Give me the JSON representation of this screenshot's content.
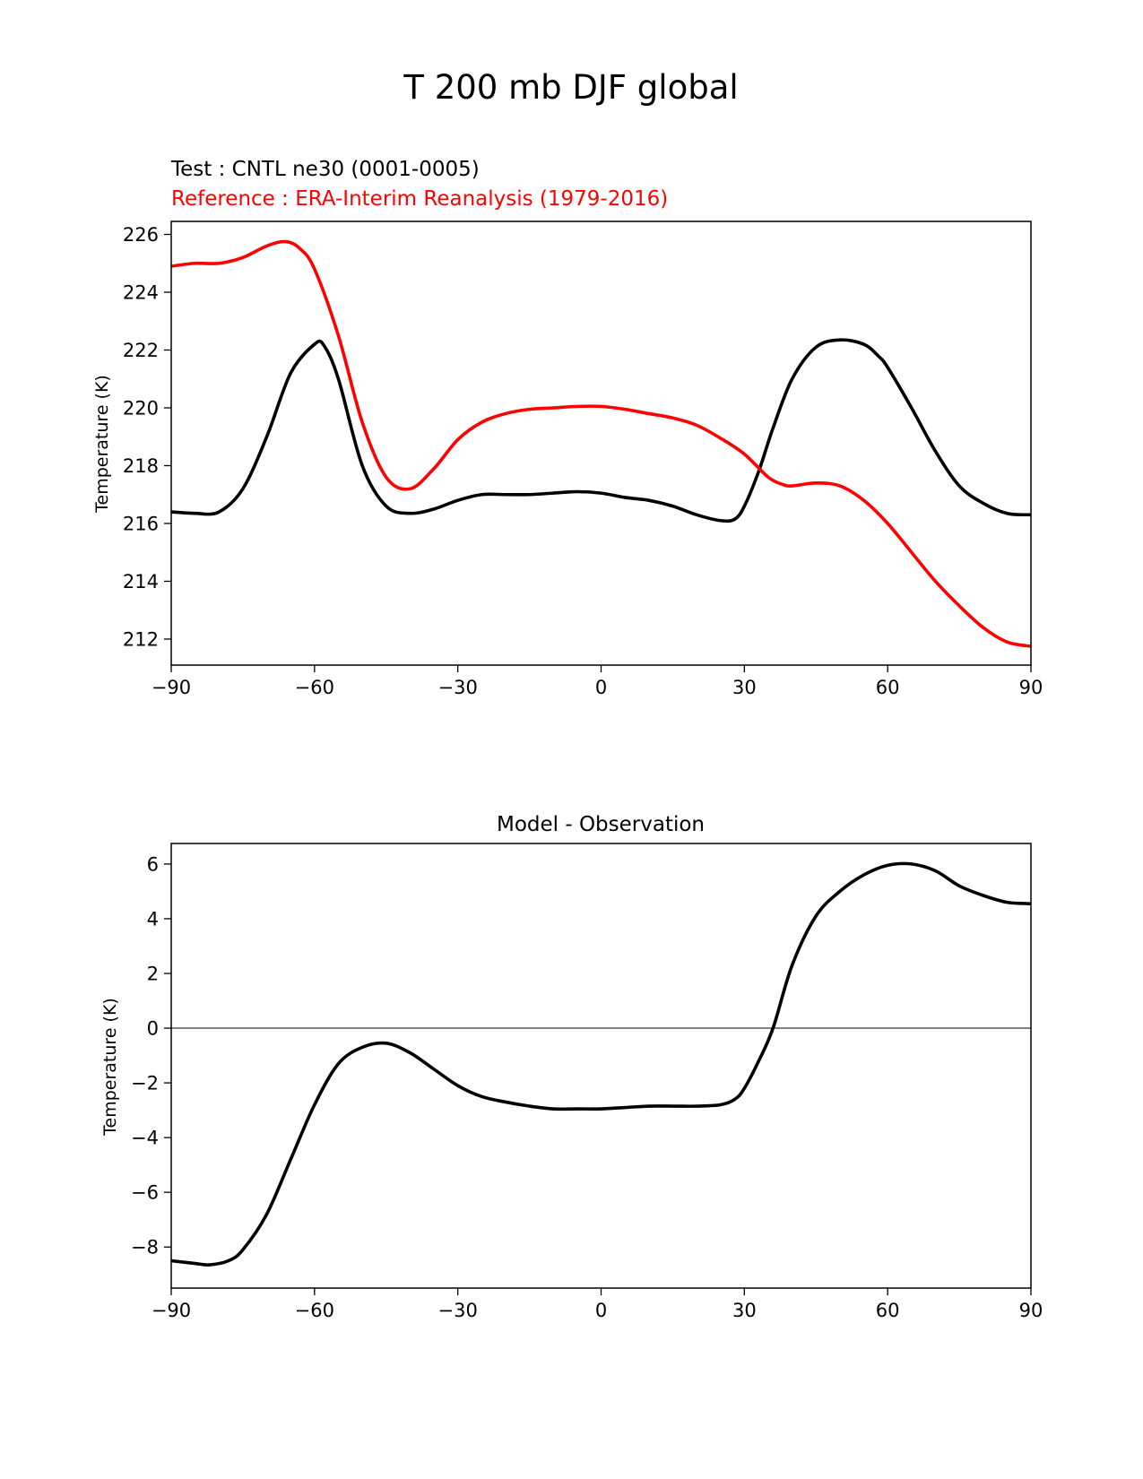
{
  "suptitle": "T 200 mb DJF global",
  "chart_data": [
    {
      "type": "line",
      "test_label": "Test : CNTL ne30 (0001-0005)",
      "ref_label": "Reference : ERA-Interim Reanalysis (1979-2016)",
      "xlabel": "",
      "ylabel": "Temperature (K)",
      "xlim": [
        -90,
        90
      ],
      "ylim": [
        211.1,
        226.45
      ],
      "xticks": [
        -90,
        -60,
        -30,
        0,
        30,
        60,
        90
      ],
      "xtick_labels": [
        "−90",
        "−60",
        "−30",
        "0",
        "30",
        "60",
        "90"
      ],
      "yticks": [
        212,
        214,
        216,
        218,
        220,
        222,
        224,
        226
      ],
      "ytick_labels": [
        "212",
        "214",
        "216",
        "218",
        "220",
        "222",
        "224",
        "226"
      ],
      "series": [
        {
          "name": "Test",
          "color": "#000000",
          "x": [
            -90,
            -85,
            -80,
            -75,
            -70,
            -65,
            -60,
            -58,
            -55,
            -50,
            -45,
            -40,
            -35,
            -30,
            -25,
            -20,
            -15,
            -10,
            -5,
            0,
            5,
            10,
            15,
            20,
            25,
            28,
            30,
            33,
            36,
            40,
            45,
            50,
            55,
            58,
            60,
            65,
            70,
            75,
            80,
            85,
            90
          ],
          "y": [
            216.4,
            216.35,
            216.4,
            217.2,
            219.0,
            221.2,
            222.2,
            222.15,
            221.0,
            218.0,
            216.6,
            216.35,
            216.5,
            216.8,
            217.0,
            217.0,
            217.0,
            217.05,
            217.1,
            217.05,
            216.9,
            216.8,
            216.6,
            216.3,
            216.1,
            216.15,
            216.6,
            217.8,
            219.3,
            221.0,
            222.1,
            222.35,
            222.2,
            221.8,
            221.4,
            220.0,
            218.5,
            217.3,
            216.7,
            216.35,
            216.3
          ]
        },
        {
          "name": "Reference",
          "color": "#ff0000",
          "x": [
            -90,
            -85,
            -80,
            -75,
            -70,
            -66,
            -63,
            -60,
            -55,
            -50,
            -45,
            -40,
            -35,
            -30,
            -25,
            -20,
            -15,
            -10,
            -5,
            0,
            5,
            10,
            15,
            20,
            25,
            30,
            35,
            38,
            40,
            45,
            50,
            55,
            60,
            65,
            70,
            75,
            80,
            85,
            90
          ],
          "y": [
            224.9,
            225.0,
            225.0,
            225.2,
            225.6,
            225.75,
            225.5,
            224.8,
            222.5,
            219.5,
            217.6,
            217.2,
            217.9,
            218.9,
            219.5,
            219.8,
            219.95,
            220.0,
            220.05,
            220.05,
            219.95,
            219.8,
            219.65,
            219.4,
            218.95,
            218.4,
            217.6,
            217.35,
            217.3,
            217.4,
            217.3,
            216.8,
            216.0,
            215.0,
            214.0,
            213.15,
            212.4,
            211.9,
            211.75
          ]
        }
      ]
    },
    {
      "type": "line",
      "title": "Model - Observation",
      "xlabel": "",
      "ylabel": "Temperature (K)",
      "xlim": [
        -90,
        90
      ],
      "ylim": [
        -9.5,
        6.75
      ],
      "xticks": [
        -90,
        -60,
        -30,
        0,
        30,
        60,
        90
      ],
      "xtick_labels": [
        "−90",
        "−60",
        "−30",
        "0",
        "30",
        "60",
        "90"
      ],
      "yticks": [
        -8,
        -6,
        -4,
        -2,
        0,
        2,
        4,
        6
      ],
      "ytick_labels": [
        "−8",
        "−6",
        "−4",
        "−2",
        "0",
        "2",
        "4",
        "6"
      ],
      "zero_line_color": "#808080",
      "series": [
        {
          "name": "Model - Observation",
          "color": "#000000",
          "x": [
            -90,
            -85,
            -82,
            -78,
            -75,
            -70,
            -65,
            -60,
            -55,
            -50,
            -45,
            -40,
            -35,
            -30,
            -25,
            -20,
            -15,
            -10,
            -5,
            0,
            5,
            10,
            15,
            20,
            25,
            28,
            30,
            33,
            36,
            40,
            45,
            50,
            55,
            60,
            65,
            70,
            75,
            80,
            85,
            90
          ],
          "y": [
            -8.5,
            -8.6,
            -8.65,
            -8.5,
            -8.1,
            -6.8,
            -4.8,
            -2.8,
            -1.3,
            -0.7,
            -0.55,
            -0.9,
            -1.5,
            -2.1,
            -2.5,
            -2.7,
            -2.85,
            -2.95,
            -2.95,
            -2.95,
            -2.9,
            -2.85,
            -2.85,
            -2.85,
            -2.8,
            -2.6,
            -2.2,
            -1.2,
            0.0,
            2.3,
            4.1,
            5.0,
            5.6,
            5.95,
            6.0,
            5.75,
            5.2,
            4.85,
            4.6,
            4.55
          ]
        }
      ]
    }
  ]
}
